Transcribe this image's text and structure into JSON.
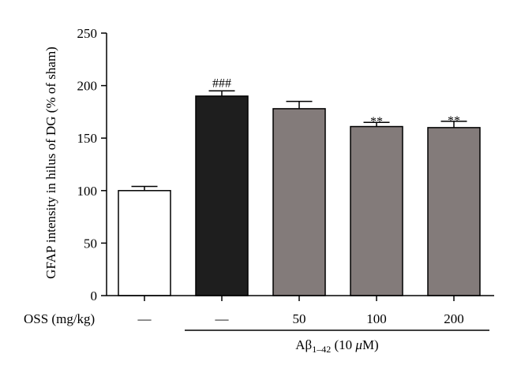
{
  "chart_data": {
    "type": "bar",
    "ylabel": "GFAP intensity in hilus of DG (% of sham)",
    "ylim": [
      0,
      250
    ],
    "yticks": [
      0,
      50,
      100,
      150,
      200,
      250
    ],
    "x_row_label": "OSS (mg/kg)",
    "categories": [
      "—",
      "—",
      "50",
      "100",
      "200"
    ],
    "values": [
      100,
      190,
      178,
      161,
      160
    ],
    "errors": [
      4,
      5,
      7,
      4,
      6
    ],
    "bar_colors": [
      "#ffffff",
      "#1e1e1e",
      "#837b7a",
      "#837b7a",
      "#837b7a"
    ],
    "annotations": [
      "",
      "###",
      "",
      "**",
      "**"
    ],
    "group_label": {
      "prefix": "Aβ",
      "subscript": "1–42",
      "conc_open": " (10 ",
      "unit_mu": "μ",
      "unit_rest": "M)"
    },
    "group_span": [
      1,
      4
    ],
    "grid": false,
    "legend": "none"
  }
}
